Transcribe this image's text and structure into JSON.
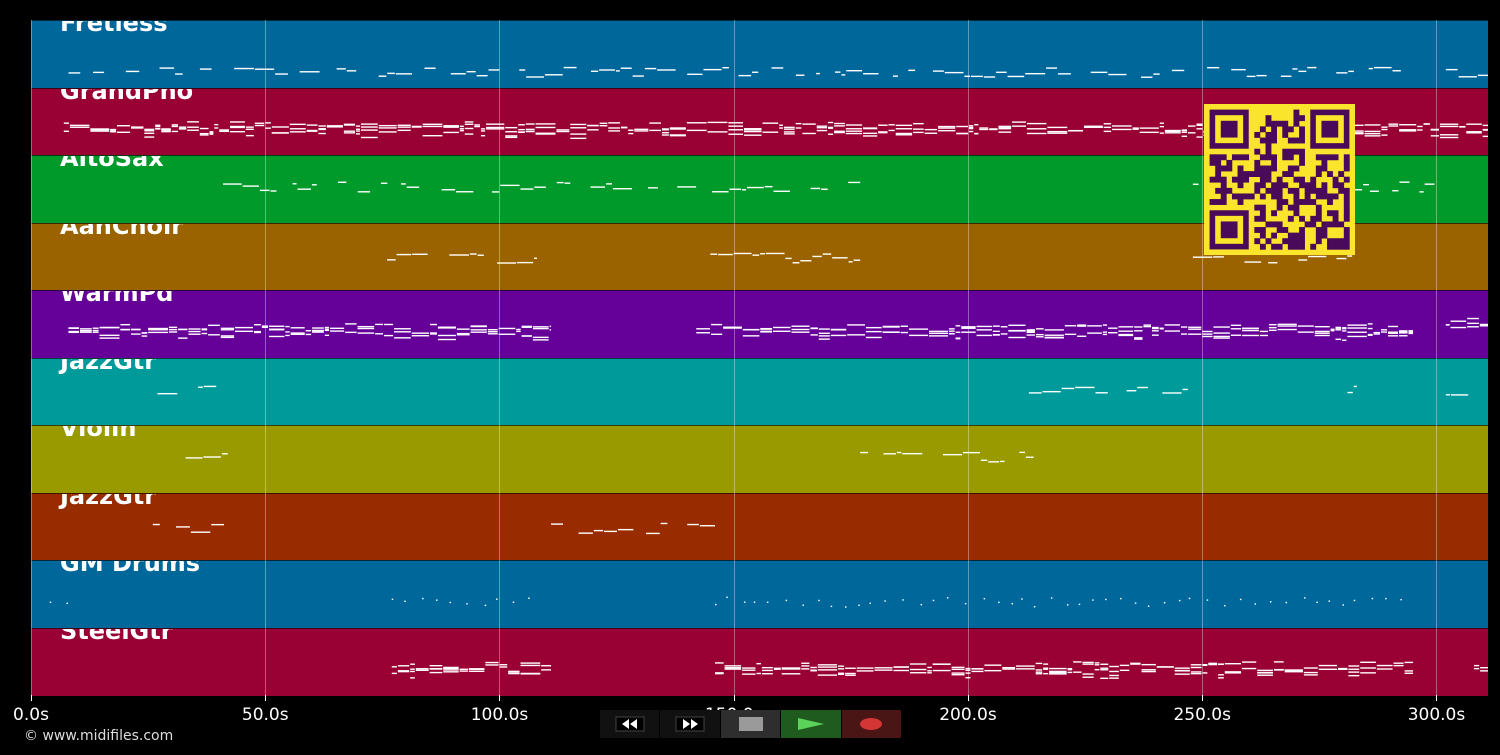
{
  "tracks": [
    {
      "name": "Fretless",
      "color": "#00679b"
    },
    {
      "name": "GrandPno",
      "color": "#990033"
    },
    {
      "name": "AltoSax",
      "color": "#009a2a"
    },
    {
      "name": "AahChoir",
      "color": "#9a6300"
    },
    {
      "name": "WarmPd",
      "color": "#650098"
    },
    {
      "name": "JazzGtr",
      "color": "#009a9a"
    },
    {
      "name": "Violin",
      "color": "#989a00"
    },
    {
      "name": "JazzGtr",
      "color": "#982b00"
    },
    {
      "name": "GM Drums",
      "color": "#00679b"
    },
    {
      "name": "SteelGtr",
      "color": "#990033"
    }
  ],
  "timeline": {
    "ticks": [
      "0.0s",
      "50.0s",
      "100.0s",
      "150.0s",
      "200.0s",
      "250.0s",
      "300.0s"
    ],
    "max_seconds": 311
  },
  "transport": {
    "rewind_icon": "rewind-icon",
    "fastforward_icon": "fast-forward-icon",
    "stop_icon": "stop-icon",
    "play_icon": "play-icon",
    "record_icon": "record-icon"
  },
  "copyright": "© www.midifiles.com",
  "qr_code": {
    "color_bg": "#fbe42c",
    "color_fg": "#4a0a5a"
  }
}
